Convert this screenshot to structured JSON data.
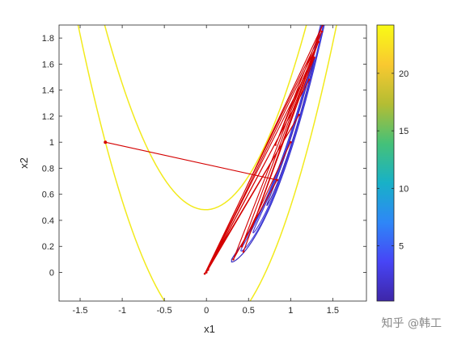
{
  "chart_data": {
    "type": "line",
    "title": "",
    "xlabel": "x1",
    "ylabel": "x2",
    "xlim": [
      -1.75,
      1.9
    ],
    "ylim": [
      -0.22,
      1.9
    ],
    "x_ticks": [
      "-1.5",
      "-1",
      "-0.5",
      "0",
      "0.5",
      "1",
      "1.5"
    ],
    "y_ticks": [
      "0",
      "0.2",
      "0.4",
      "0.6",
      "0.8",
      "1",
      "1.2",
      "1.4",
      "1.6",
      "1.8"
    ],
    "grid": false,
    "colorbar": {
      "ticks": [
        "5",
        "10",
        "15",
        "20"
      ],
      "range": [
        0.2,
        24.2
      ],
      "colormap": [
        "#3e26a8",
        "#4745f6",
        "#2e87f7",
        "#18b1c7",
        "#45c178",
        "#b4bd33",
        "#f9c930",
        "#f9fb15"
      ]
    },
    "contours": [
      {
        "level": 24.2,
        "color": "#f2ea1c",
        "description": "outer contour"
      },
      {
        "level": 0.5,
        "color": "#3a2fc0",
        "description": "inner contour along valley"
      }
    ],
    "series": [
      {
        "color": "#d40000",
        "points": [
          [
            -1.2,
            1.0
          ],
          [
            0.84,
            0.71
          ],
          [
            0.32,
            0.1
          ],
          [
            1.37,
            1.85
          ],
          [
            -0.02,
            -0.01
          ],
          [
            1.1,
            1.21
          ],
          [
            0.0,
            0.0
          ],
          [
            1.38,
            1.9
          ],
          [
            0.82,
            0.98
          ],
          [
            1.33,
            1.77
          ],
          [
            0.44,
            0.16
          ],
          [
            1.28,
            1.65
          ],
          [
            0.0,
            0.0
          ],
          [
            1.22,
            1.48
          ],
          [
            0.02,
            0.02
          ],
          [
            1.33,
            1.77
          ],
          [
            0.42,
            0.2
          ],
          [
            1.0,
            1.0
          ]
        ]
      }
    ],
    "start_point": [
      -1.2,
      1.0
    ],
    "watermark": "知乎 @韩工"
  }
}
